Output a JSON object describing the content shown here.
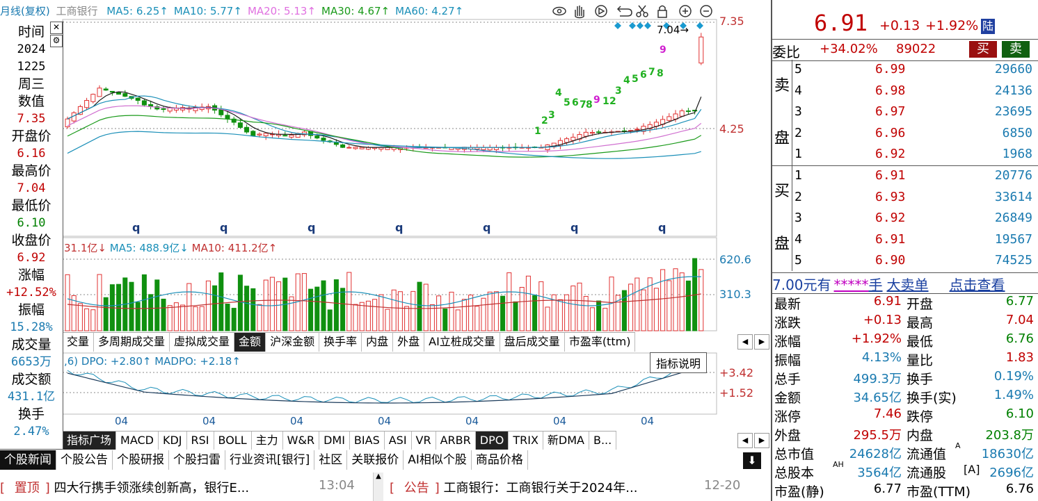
{
  "chart_header": {
    "period": "月线(复权)",
    "stock": "工商银行",
    "ma": [
      {
        "label": "MA5: 6.25↑",
        "color": "#1a8fb8"
      },
      {
        "label": "MA10: 5.77↑",
        "color": "#1a8fb8"
      },
      {
        "label": "MA20: 5.13↑",
        "color": "#e070e0"
      },
      {
        "label": "MA30: 4.67↑",
        "color": "#1a9a1a"
      },
      {
        "label": "MA60: 4.27↑",
        "color": "#1a8fb8"
      }
    ]
  },
  "toolbar_icons": [
    "eye-icon",
    "hand-icon",
    "play-icon",
    "undo-icon",
    "scissors-icon",
    "lock-icon",
    "zoom-in-icon",
    "zoom-out-icon"
  ],
  "price_axis": {
    "top": "7.35",
    "mid": "4.25"
  },
  "price_marker": "7.04",
  "volume_header": {
    "parts": [
      "31.1亿↓",
      "MA5: 488.9亿↓",
      "MA10: 411.2亿↑"
    ]
  },
  "volume_axis": {
    "top": "620.6",
    "mid": "310.3"
  },
  "q_labels": [
    "q",
    "q",
    "q",
    "q",
    "q",
    "q",
    "q"
  ],
  "sequence_top": [
    "1",
    "2",
    "3",
    "4",
    "5",
    "6",
    "7",
    "8",
    "9",
    "1",
    "2",
    "3",
    "4",
    "5",
    "6",
    "7",
    "8",
    "9"
  ],
  "tabs_middle": [
    {
      "label": "交量",
      "active": false
    },
    {
      "label": "多周期成交量",
      "active": false
    },
    {
      "label": "虚拟成交量",
      "active": false
    },
    {
      "label": "金额",
      "active": true
    },
    {
      "label": "沪深金额",
      "active": false
    },
    {
      "label": "换手率",
      "active": false
    },
    {
      "label": "内盘",
      "active": false
    },
    {
      "label": "外盘",
      "active": false
    },
    {
      "label": "AI立桩成交量",
      "active": false
    },
    {
      "label": "盘后成交量",
      "active": false
    },
    {
      "label": "市盈率(ttm)",
      "active": false
    }
  ],
  "tooltip": "指标说明",
  "dpo_header": ",6) DPO: +2.80↑ MADPO: +2.18↑",
  "dpo_axis": {
    "top": "+3.42",
    "mid": "+1.52"
  },
  "x_labels": [
    "04",
    "04",
    "04",
    "04",
    "04",
    "04",
    "04"
  ],
  "tabs_bottom": [
    {
      "label": "指标广场",
      "active": true
    },
    {
      "label": "MACD",
      "active": false
    },
    {
      "label": "KDJ",
      "active": false
    },
    {
      "label": "RSI",
      "active": false
    },
    {
      "label": "BOLL",
      "active": false
    },
    {
      "label": "主力",
      "active": false
    },
    {
      "label": "W&R",
      "active": false
    },
    {
      "label": "DMI",
      "active": false
    },
    {
      "label": "BIAS",
      "active": false
    },
    {
      "label": "ASI",
      "active": false
    },
    {
      "label": "VR",
      "active": false
    },
    {
      "label": "ARBR",
      "active": false
    },
    {
      "label": "DPO",
      "active": true
    },
    {
      "label": "TRIX",
      "active": false
    },
    {
      "label": "新DMA",
      "active": false
    },
    {
      "label": "B...",
      "active": false
    }
  ],
  "news_tabs": [
    "个股新闻",
    "个股公告",
    "个股研报",
    "个股扫雷",
    "行业资讯[银行]",
    "社区",
    "关联报价",
    "AI相似个股",
    "商品价格"
  ],
  "news": [
    {
      "tag": "置顶",
      "title": "四大行携手领涨续创新高，银行E...",
      "time": "13:04"
    },
    {
      "tag": "公告",
      "title": "工商银行：工商银行关于2024年...",
      "time": "12-20"
    }
  ],
  "info_panel": [
    {
      "label": "时间",
      "value": "2024",
      "value_color": "#000"
    },
    {
      "label": "",
      "value": "1225",
      "value_color": "#000"
    },
    {
      "label": "周三",
      "value": "",
      "value_color": "#000"
    },
    {
      "label": "数值",
      "value": "7.35",
      "value_color": "#c00000"
    },
    {
      "label": "开盘价",
      "value": "6.16",
      "value_color": "#c00000"
    },
    {
      "label": "最高价",
      "value": "7.04",
      "value_color": "#c00000"
    },
    {
      "label": "最低价",
      "value": "6.10",
      "value_color": "#008000"
    },
    {
      "label": "收盘价",
      "value": "6.92",
      "value_color": "#c00000"
    },
    {
      "label": "涨幅",
      "value": "+12.52%",
      "value_color": "#c00000"
    },
    {
      "label": "振幅",
      "value": "15.28%",
      "value_color": "#1a7ab0"
    },
    {
      "label": "成交量",
      "value": "6653万",
      "value_color": "#1a7ab0"
    },
    {
      "label": "成交额",
      "value": "431.1亿",
      "value_color": "#1a7ab0"
    },
    {
      "label": "换手",
      "value": "2.47%",
      "value_color": "#1a7ab0"
    }
  ],
  "quote": {
    "price": "6.91",
    "change": "+0.13",
    "pct": "+1.92%",
    "badge": "陆",
    "weibi_label": "委比",
    "weibi": "+34.02%",
    "weicha": "89022",
    "buy_btn": "买",
    "sell_btn": "卖",
    "sell_side_label": "卖盘",
    "buy_side_label": "买盘",
    "asks": [
      {
        "lvl": "5",
        "price": "6.99",
        "vol": "29660"
      },
      {
        "lvl": "4",
        "price": "6.98",
        "vol": "24136"
      },
      {
        "lvl": "3",
        "price": "6.97",
        "vol": "23695"
      },
      {
        "lvl": "2",
        "price": "6.96",
        "vol": "6850"
      },
      {
        "lvl": "1",
        "price": "6.92",
        "vol": "1968"
      }
    ],
    "bids": [
      {
        "lvl": "1",
        "price": "6.91",
        "vol": "20776"
      },
      {
        "lvl": "2",
        "price": "6.93",
        "vol": "33614"
      },
      {
        "lvl": "3",
        "price": "6.92",
        "vol": "26849"
      },
      {
        "lvl": "4",
        "price": "6.91",
        "vol": "19567"
      },
      {
        "lvl": "5",
        "price": "6.90",
        "vol": "74525"
      }
    ],
    "big_order": {
      "a": "7.00",
      "b": "元有",
      "c": "*****",
      "d": "手",
      "e": "大卖单",
      "f": "点击查看"
    },
    "stats": [
      {
        "l1": "最新",
        "v1": "6.91",
        "c1": "#c00000",
        "l2": "开盘",
        "v2": "6.77",
        "c2": "#008000"
      },
      {
        "l1": "涨跌",
        "v1": "+0.13",
        "c1": "#c00000",
        "l2": "最高",
        "v2": "7.04",
        "c2": "#c00000"
      },
      {
        "l1": "涨幅",
        "v1": "+1.92%",
        "c1": "#c00000",
        "l2": "最低",
        "v2": "6.76",
        "c2": "#008000"
      },
      {
        "l1": "振幅",
        "v1": "4.13%",
        "c1": "#1a7ab0",
        "l2": "量比",
        "v2": "1.83",
        "c2": "#c00000"
      },
      {
        "l1": "总手",
        "v1": "499.3万",
        "c1": "#1a7ab0",
        "l2": "换手",
        "v2": "0.19%",
        "c2": "#1a7ab0"
      },
      {
        "l1": "金额",
        "v1": "34.65亿",
        "c1": "#1a7ab0",
        "l2": "换手(实)",
        "v2": "1.49%",
        "c2": "#1a7ab0"
      },
      {
        "l1": "涨停",
        "v1": "7.46",
        "c1": "#c00000",
        "l2": "跌停",
        "v2": "6.10",
        "c2": "#008000"
      },
      {
        "l1": "外盘",
        "v1": "295.5万",
        "c1": "#c00000",
        "l2": "内盘",
        "v2": "203.8万",
        "c2": "#008000"
      },
      {
        "l1": "总市值",
        "v1": "24628亿",
        "c1": "#1a7ab0",
        "l2": "流通值",
        "v2": "18630亿",
        "c2": "#1a7ab0",
        "sup2": "A"
      },
      {
        "l1": "总股本",
        "v1": "3564亿",
        "c1": "#1a7ab0",
        "sup1": "AH",
        "l2": "流通股",
        "v2": "2696亿",
        "c2": "#1a7ab0",
        "pre2": "[A]"
      },
      {
        "l1": "市盈(静)",
        "v1": "6.77",
        "c1": "#000",
        "l2": "市盈(TTM)",
        "v2": "6.76",
        "c2": "#000"
      }
    ]
  },
  "colors": {
    "up": "#e03030",
    "down": "#109010",
    "ma5": "#1a1a1a",
    "ma10": "#1a8fb8",
    "ma20": "#d070d0",
    "ma30": "#1a9a1a",
    "ma60": "#1a8fb8"
  }
}
